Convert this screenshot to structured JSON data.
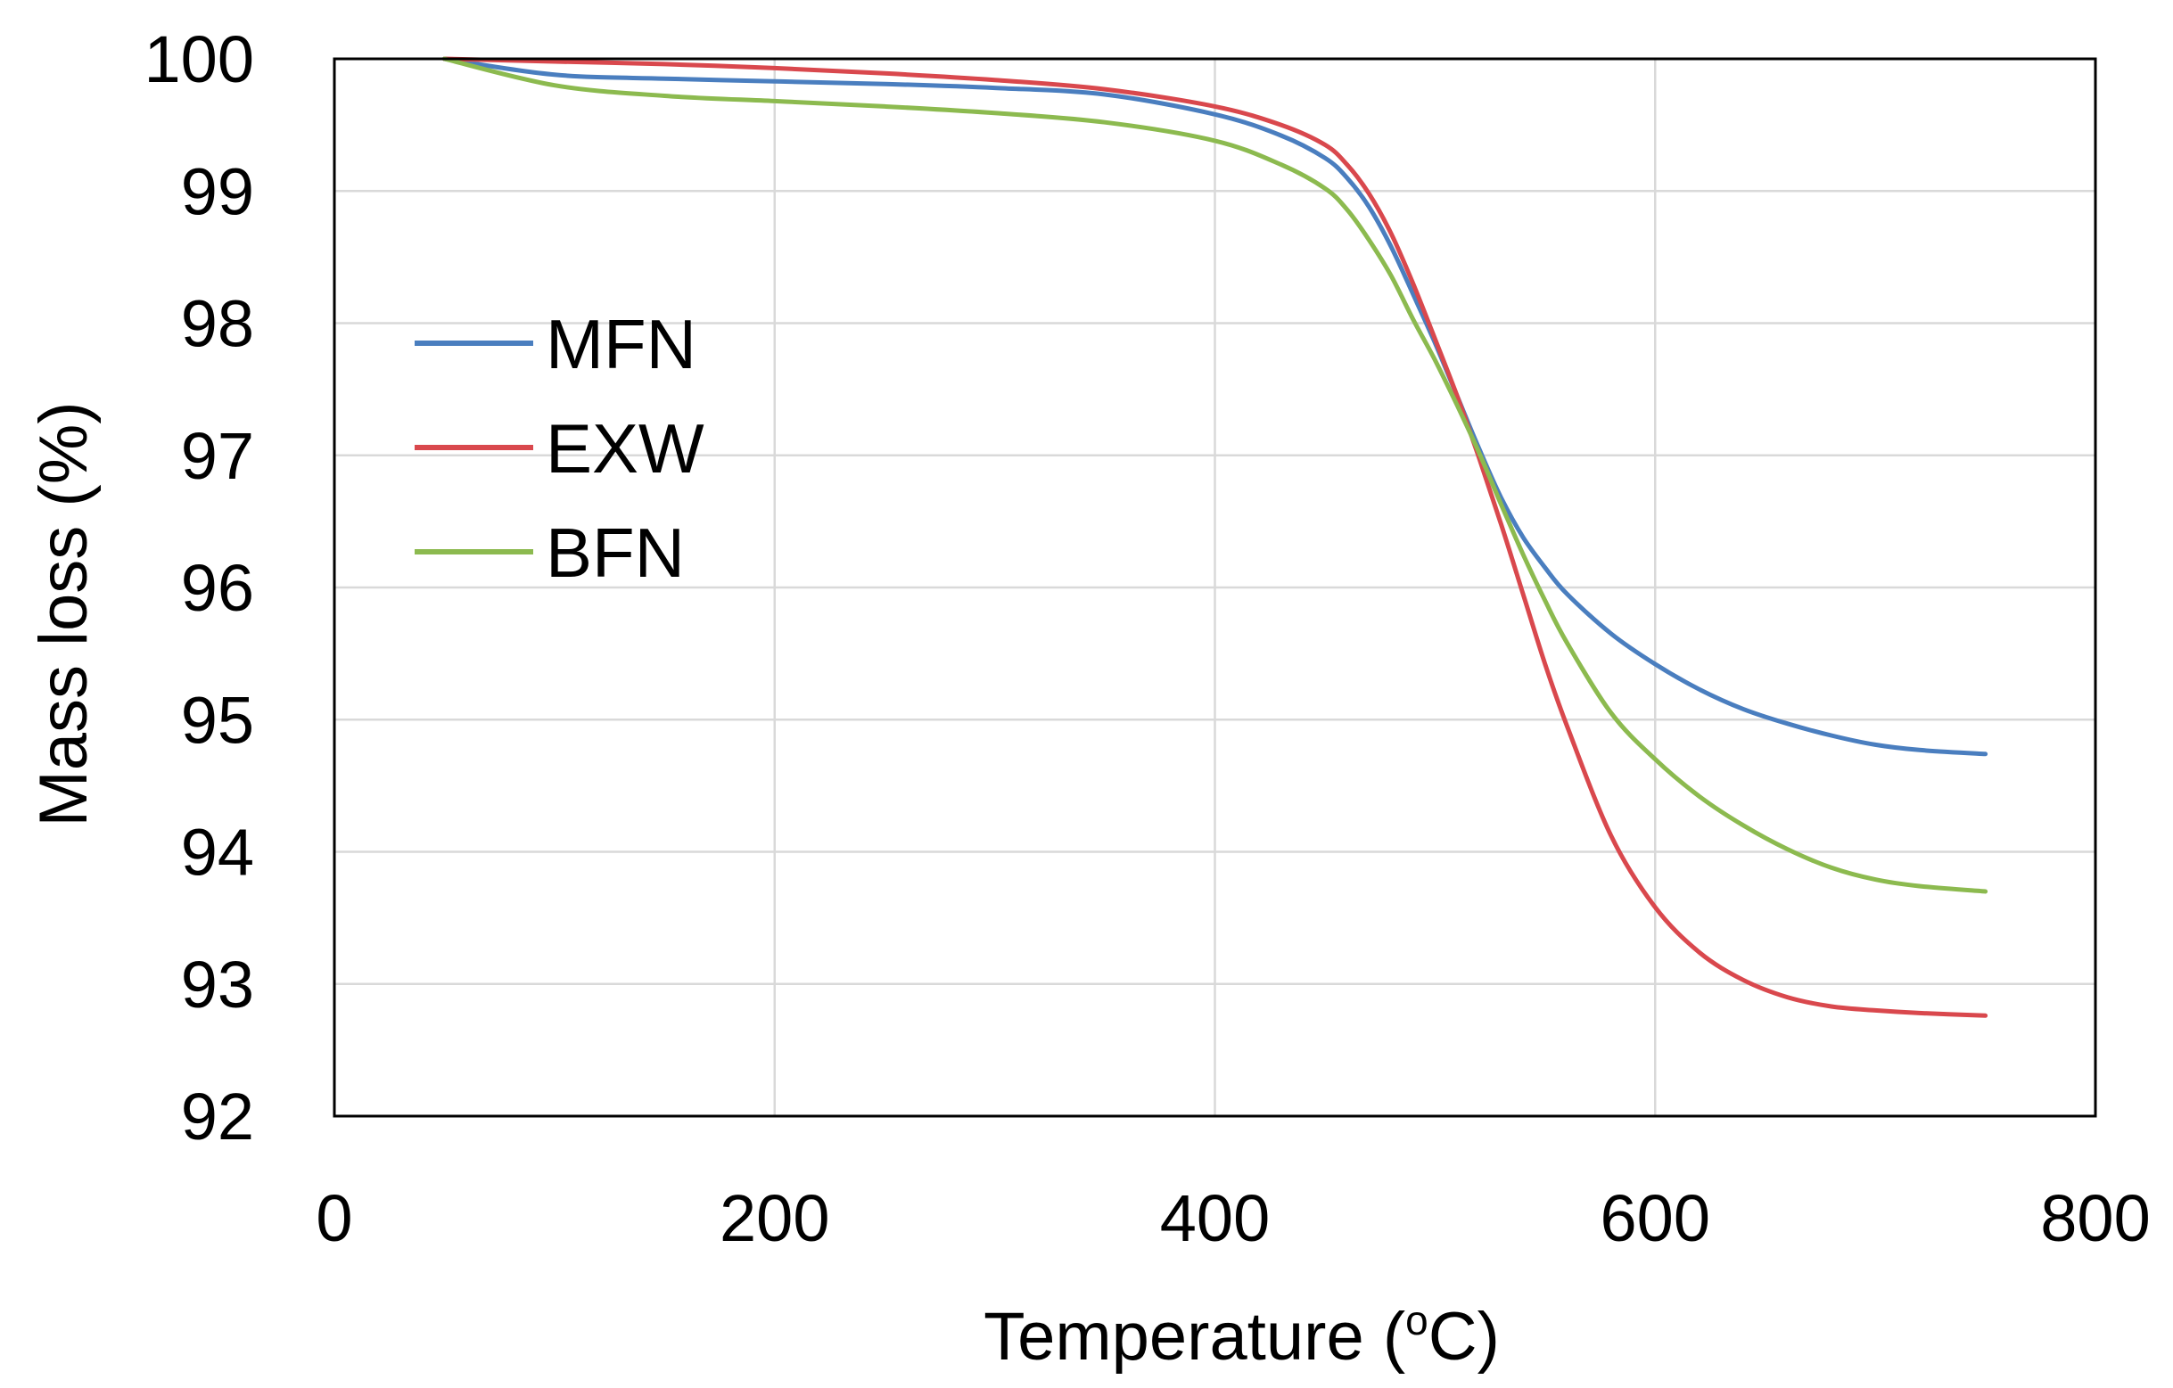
{
  "chart_data": {
    "type": "line",
    "title": "",
    "xlabel": {
      "main": "Temperature  (",
      "superscript": "o",
      "unit": "C)"
    },
    "ylabel": "Mass loss (%)",
    "xlim": [
      0,
      800
    ],
    "ylim": [
      92,
      100
    ],
    "xticks": [
      0,
      200,
      400,
      600,
      800
    ],
    "yticks": [
      92,
      93,
      94,
      95,
      96,
      97,
      98,
      99,
      100
    ],
    "grid": true,
    "legend_position": "left",
    "series": [
      {
        "name": "MFN",
        "color": "#4a7ebf",
        "x": [
          50,
          100,
          150,
          200,
          250,
          300,
          350,
          400,
          430,
          450,
          460,
          470,
          480,
          490,
          500,
          510,
          520,
          530,
          540,
          550,
          560,
          580,
          600,
          620,
          640,
          660,
          680,
          700,
          720,
          750
        ],
        "y": [
          100,
          99.88,
          99.85,
          99.83,
          99.81,
          99.78,
          99.73,
          99.58,
          99.42,
          99.25,
          99.1,
          98.88,
          98.58,
          98.22,
          97.85,
          97.45,
          97.05,
          96.68,
          96.38,
          96.15,
          95.95,
          95.65,
          95.42,
          95.23,
          95.08,
          94.97,
          94.88,
          94.81,
          94.77,
          94.74
        ]
      },
      {
        "name": "EXW",
        "color": "#d9484d",
        "x": [
          50,
          100,
          150,
          200,
          250,
          300,
          350,
          400,
          430,
          450,
          460,
          470,
          480,
          490,
          500,
          510,
          520,
          530,
          540,
          550,
          560,
          580,
          600,
          620,
          640,
          660,
          680,
          700,
          720,
          750
        ],
        "y": [
          100,
          99.98,
          99.96,
          99.93,
          99.89,
          99.84,
          99.77,
          99.64,
          99.5,
          99.35,
          99.2,
          98.98,
          98.68,
          98.3,
          97.88,
          97.45,
          96.98,
          96.48,
          95.95,
          95.42,
          94.95,
          94.12,
          93.58,
          93.24,
          93.03,
          92.9,
          92.83,
          92.8,
          92.78,
          92.76
        ]
      },
      {
        "name": "BFN",
        "color": "#8cba4f",
        "x": [
          50,
          100,
          150,
          200,
          250,
          300,
          350,
          400,
          430,
          450,
          460,
          470,
          480,
          490,
          500,
          510,
          520,
          530,
          540,
          550,
          560,
          580,
          600,
          620,
          640,
          660,
          680,
          700,
          720,
          750
        ],
        "y": [
          100,
          99.8,
          99.72,
          99.68,
          99.64,
          99.59,
          99.52,
          99.38,
          99.2,
          99.02,
          98.86,
          98.63,
          98.36,
          98.03,
          97.72,
          97.38,
          97.02,
          96.63,
          96.25,
          95.9,
          95.58,
          95.05,
          94.7,
          94.42,
          94.2,
          94.02,
          93.88,
          93.79,
          93.74,
          93.7
        ]
      }
    ]
  }
}
